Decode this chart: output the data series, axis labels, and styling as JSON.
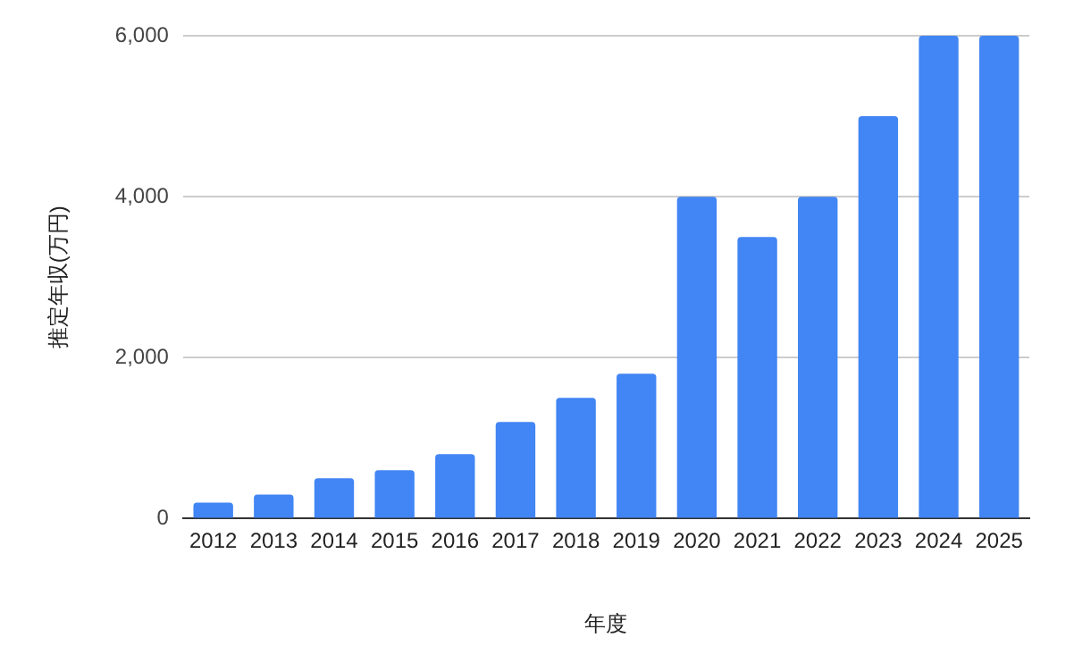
{
  "chart_data": {
    "type": "bar",
    "xlabel": "年度",
    "ylabel": "推定年収(万円)",
    "categories": [
      "2012",
      "2013",
      "2014",
      "2015",
      "2016",
      "2017",
      "2018",
      "2019",
      "2020",
      "2021",
      "2022",
      "2023",
      "2024",
      "2025"
    ],
    "values": [
      200,
      300,
      500,
      600,
      800,
      1200,
      1500,
      1800,
      4000,
      3500,
      4000,
      5000,
      6000,
      6000
    ],
    "color": "#4285f4",
    "ylim": [
      0,
      6000
    ],
    "yticks": [
      {
        "value": 0,
        "label": "0"
      },
      {
        "value": 2000,
        "label": "2,000"
      },
      {
        "value": 4000,
        "label": "4,000"
      },
      {
        "value": 6000,
        "label": "6,000"
      }
    ],
    "grid": "y",
    "legend": false
  }
}
